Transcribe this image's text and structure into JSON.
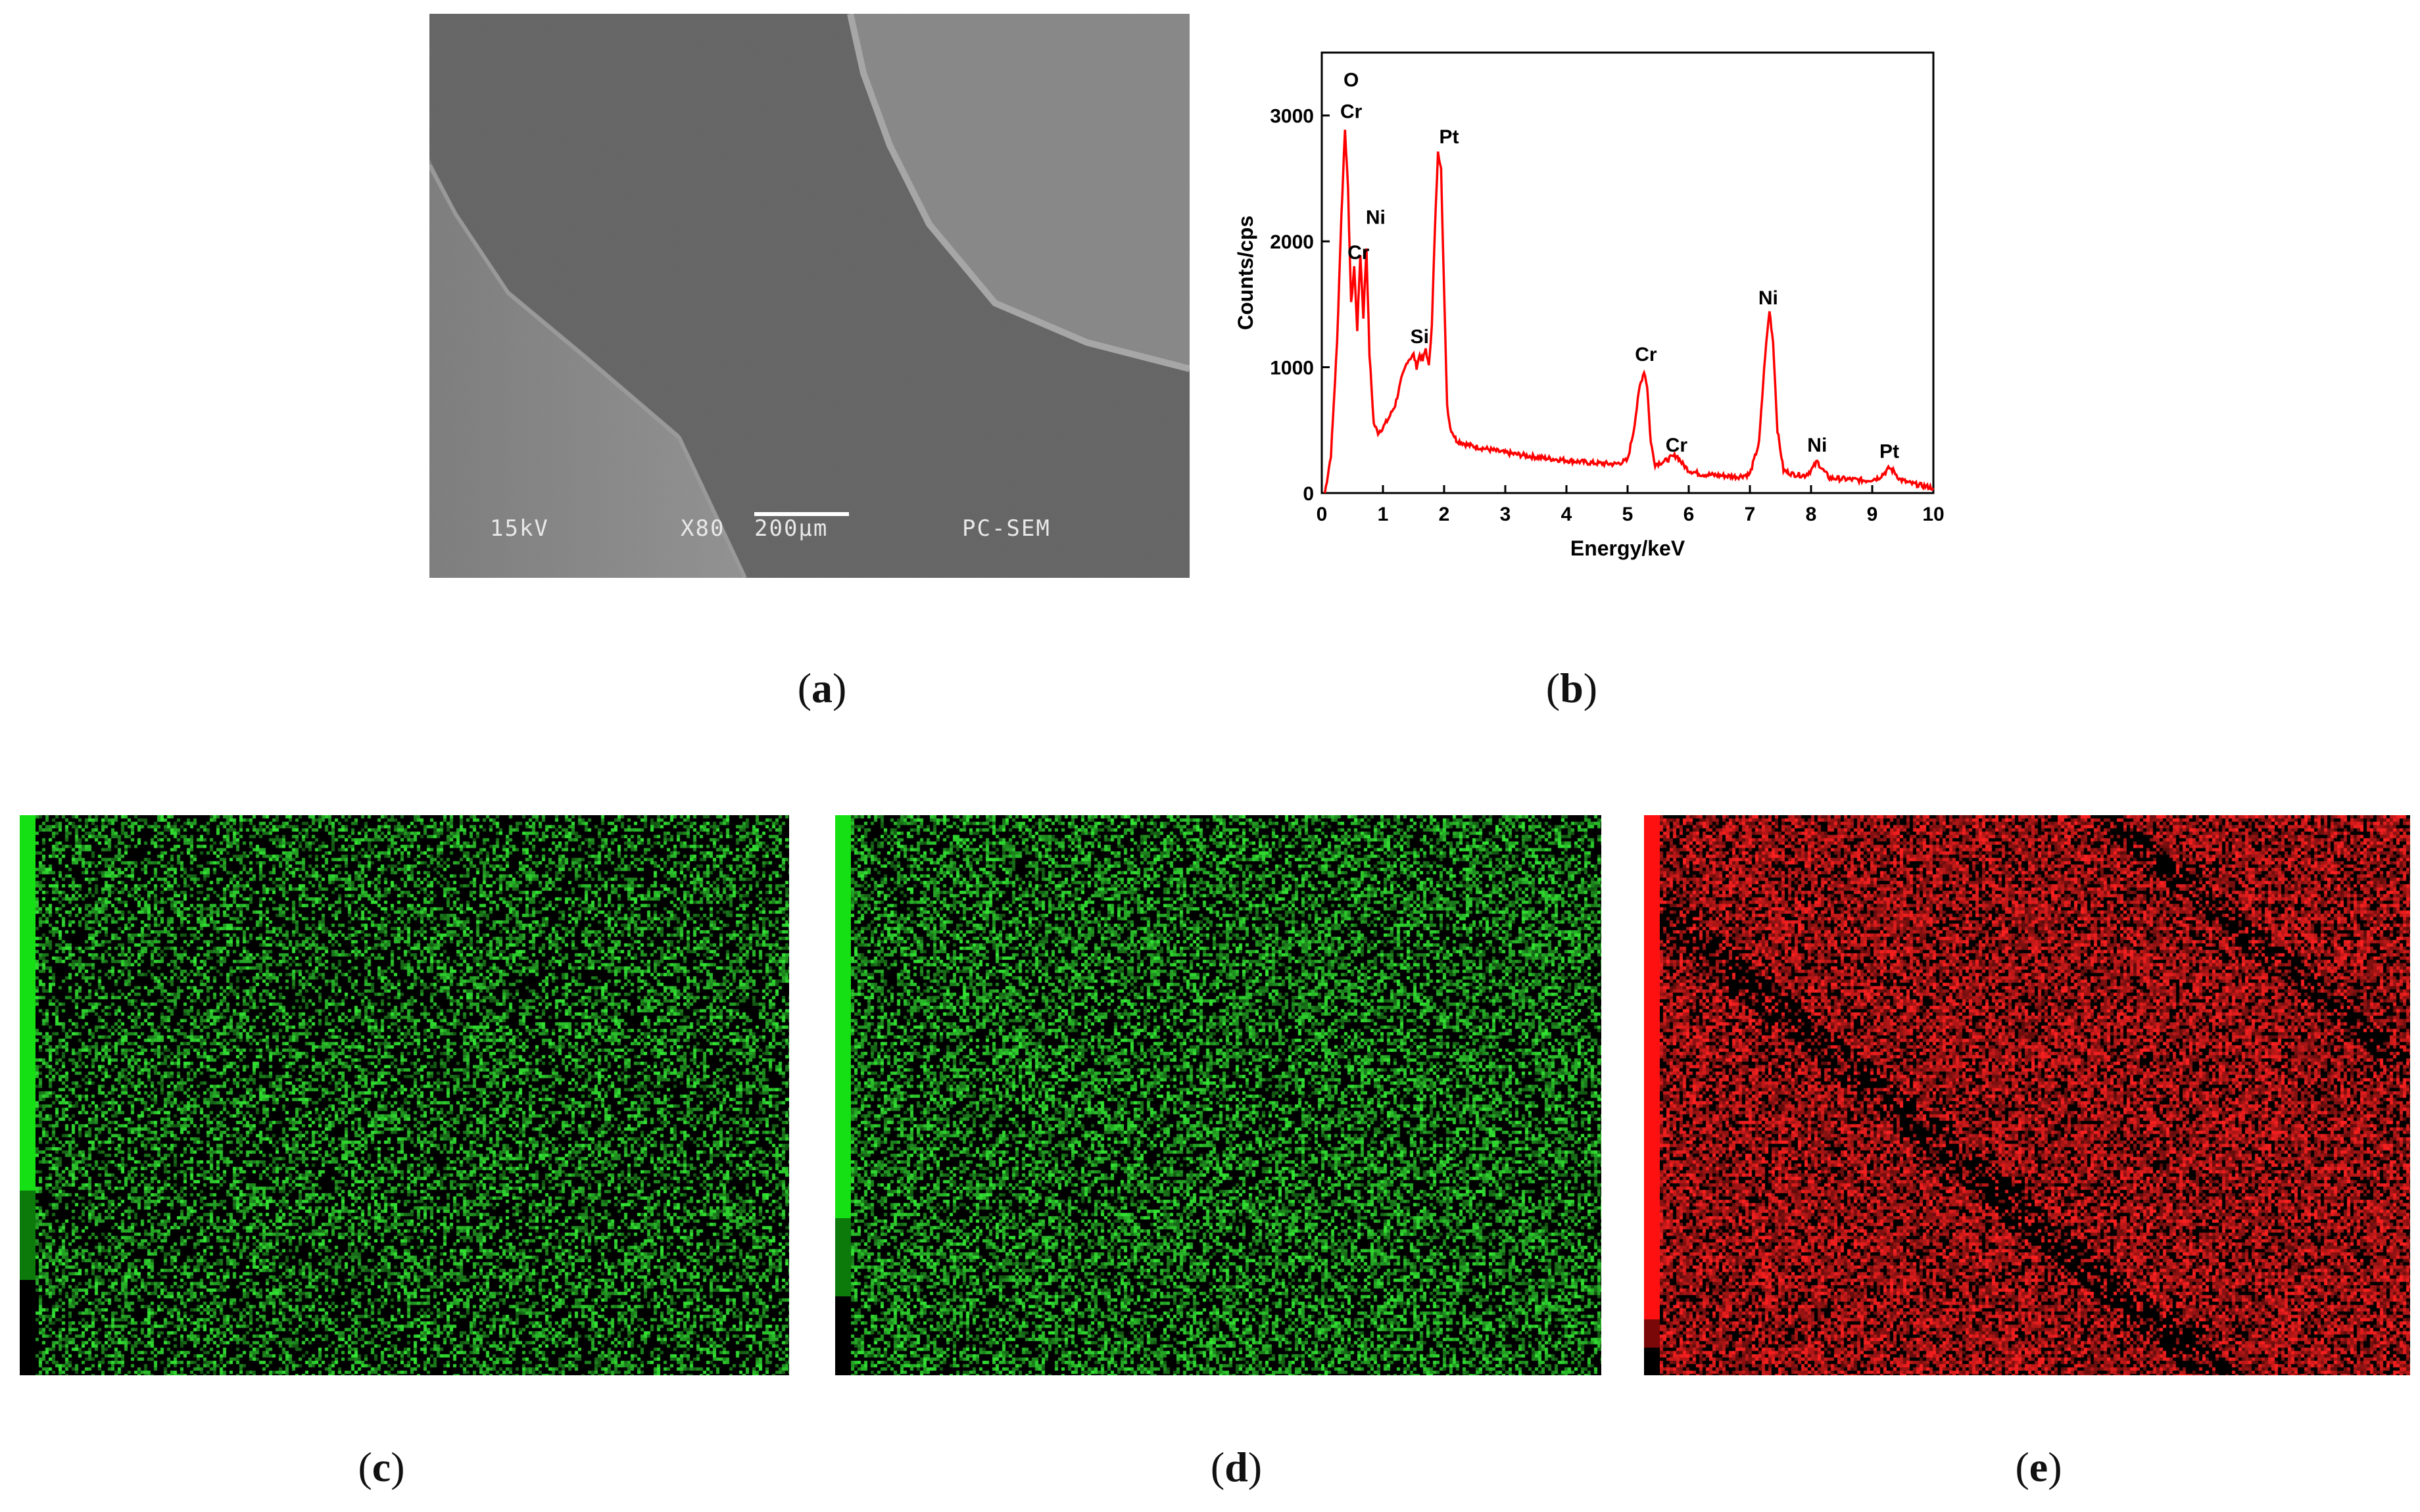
{
  "panels": {
    "a": {
      "label": "a",
      "sem_labels": {
        "voltage": "15kV",
        "magnification": "X80",
        "scale": "200µm",
        "mode": "PC-SEM"
      }
    },
    "b": {
      "label": "b"
    },
    "c": {
      "label": "c",
      "color": "#33e633",
      "bar_colors": [
        "#14e014",
        "#0b7a0b",
        "#000000"
      ],
      "bar_fractions": [
        0.67,
        0.16,
        0.17
      ]
    },
    "d": {
      "label": "d",
      "color": "#33e633",
      "bar_colors": [
        "#14e014",
        "#0b7a0b",
        "#000000"
      ],
      "bar_fractions": [
        0.72,
        0.14,
        0.14
      ]
    },
    "e": {
      "label": "e",
      "color": "#ff2020",
      "bar_colors": [
        "#ff1010",
        "#7a0808",
        "#000000"
      ],
      "bar_fractions": [
        0.9,
        0.05,
        0.05
      ]
    }
  },
  "chart_data": {
    "type": "line",
    "xlabel": "Energy/keV",
    "ylabel": "Counts/cps",
    "xlim": [
      0,
      10
    ],
    "ylim": [
      0,
      3500
    ],
    "xticks": [
      0,
      1,
      2,
      3,
      4,
      5,
      6,
      7,
      8,
      9,
      10
    ],
    "yticks": [
      0,
      1000,
      2000,
      3000
    ],
    "line_color": "#ff0000",
    "series": [
      {
        "x": [
          0.05,
          0.15,
          0.25,
          0.32,
          0.38,
          0.43,
          0.48,
          0.53,
          0.58,
          0.63,
          0.68,
          0.73,
          0.78,
          0.85,
          0.92,
          1.0,
          1.1,
          1.2,
          1.3,
          1.4,
          1.5,
          1.55,
          1.6,
          1.65,
          1.7,
          1.75,
          1.8,
          1.85,
          1.9,
          1.95,
          2.0,
          2.05,
          2.1,
          2.2,
          2.4,
          2.6,
          2.8,
          3.0,
          3.3,
          3.6,
          4.0,
          4.4,
          4.8,
          5.0,
          5.1,
          5.2,
          5.27,
          5.32,
          5.38,
          5.45,
          5.6,
          5.7,
          5.8,
          5.9,
          6.0,
          6.2,
          6.5,
          6.8,
          7.0,
          7.15,
          7.25,
          7.32,
          7.38,
          7.45,
          7.55,
          7.7,
          7.9,
          8.0,
          8.1,
          8.2,
          8.3,
          8.6,
          8.9,
          9.1,
          9.2,
          9.28,
          9.36,
          9.45,
          9.6,
          9.8,
          10.0
        ],
        "y": [
          0,
          300,
          1200,
          2200,
          2900,
          2400,
          1500,
          1800,
          1300,
          1900,
          1400,
          1950,
          1100,
          550,
          480,
          520,
          600,
          700,
          900,
          1050,
          1100,
          1000,
          1100,
          1050,
          1150,
          1000,
          1350,
          2100,
          2700,
          2600,
          1600,
          700,
          520,
          420,
          380,
          360,
          340,
          320,
          300,
          280,
          260,
          240,
          230,
          260,
          500,
          850,
          970,
          850,
          400,
          230,
          250,
          280,
          300,
          230,
          180,
          150,
          140,
          130,
          150,
          400,
          1100,
          1450,
          1200,
          500,
          180,
          150,
          140,
          180,
          250,
          180,
          120,
          110,
          100,
          120,
          160,
          200,
          170,
          110,
          80,
          60,
          40
        ]
      }
    ],
    "annotations": [
      {
        "text": "O",
        "x": 0.48,
        "y": 3230
      },
      {
        "text": "Cr",
        "x": 0.48,
        "y": 2980
      },
      {
        "text": "Pt",
        "x": 2.08,
        "y": 2780
      },
      {
        "text": "Ni",
        "x": 0.88,
        "y": 2140
      },
      {
        "text": "Cr",
        "x": 0.6,
        "y": 1860
      },
      {
        "text": "Si",
        "x": 1.6,
        "y": 1190
      },
      {
        "text": "Cr",
        "x": 5.3,
        "y": 1050
      },
      {
        "text": "Cr",
        "x": 5.8,
        "y": 330
      },
      {
        "text": "Ni",
        "x": 7.3,
        "y": 1500
      },
      {
        "text": "Ni",
        "x": 8.1,
        "y": 330
      },
      {
        "text": "Pt",
        "x": 9.28,
        "y": 280
      }
    ]
  }
}
